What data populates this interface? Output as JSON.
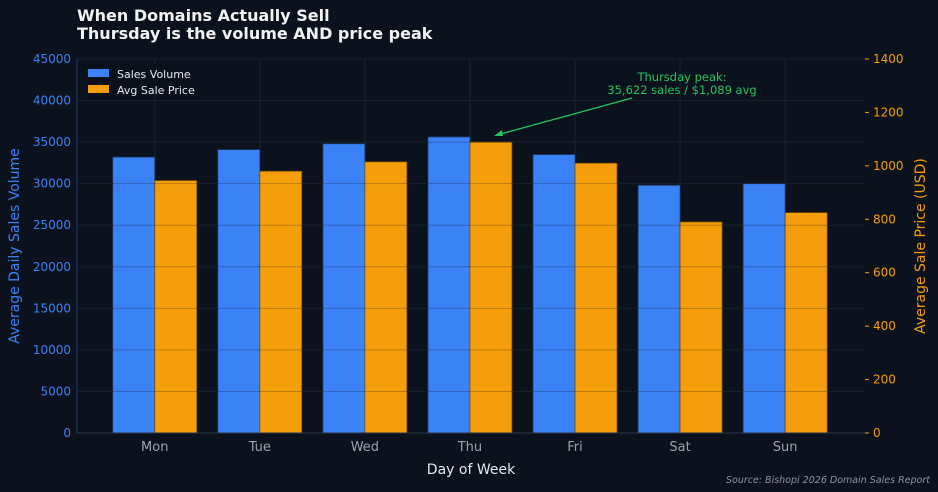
{
  "chart_data": {
    "type": "bar",
    "title": "When Domains Actually Sell",
    "subtitle": "Thursday is the volume AND price peak",
    "xlabel": "Day of Week",
    "ylabel_left": "Average Daily Sales Volume",
    "ylabel_right": "Average Sale Price (USD)",
    "categories": [
      "Mon",
      "Tue",
      "Wed",
      "Thu",
      "Fri",
      "Sat",
      "Sun"
    ],
    "series": [
      {
        "name": "Sales Volume",
        "axis": "left",
        "color": "#3b82f6",
        "values": [
          33200,
          34100,
          34800,
          35622,
          33500,
          29800,
          30000
        ]
      },
      {
        "name": "Avg Sale Price",
        "axis": "right",
        "color": "#f59e0b",
        "values": [
          945,
          980,
          1015,
          1089,
          1010,
          790,
          825
        ]
      }
    ],
    "ylim_left": [
      0,
      45000
    ],
    "yticks_left": [
      "0",
      "5000",
      "10000",
      "15000",
      "20000",
      "25000",
      "30000",
      "35000",
      "40000",
      "45000"
    ],
    "ylim_right": [
      0,
      1400
    ],
    "yticks_right": [
      "0",
      "200",
      "400",
      "600",
      "800",
      "1000",
      "1200",
      "1400"
    ],
    "grid": true,
    "legend": "top-left",
    "annotation": {
      "lines": [
        "Thursday peak:",
        "35,622 sales / $1,089 avg"
      ],
      "target": "Thu",
      "color": "#22c55e"
    },
    "source": "Source: Bishopi 2026 Domain Sales Report"
  }
}
